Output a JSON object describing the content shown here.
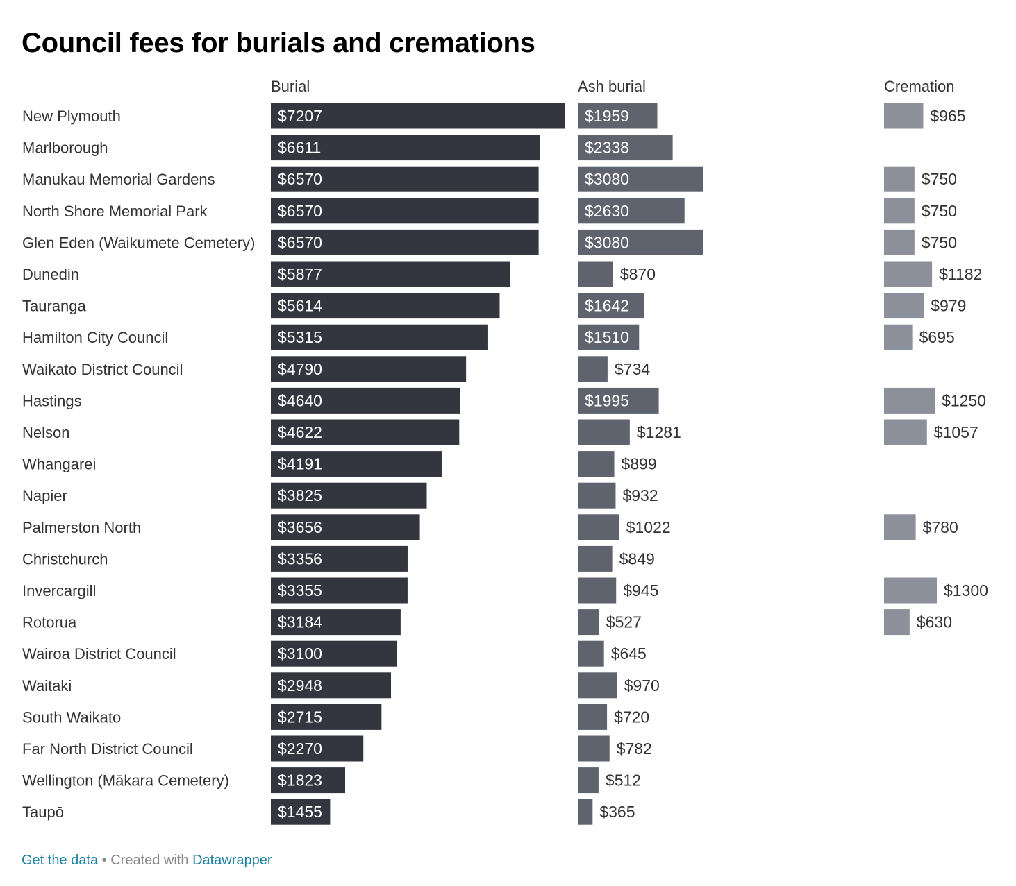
{
  "title": "Council fees for burials and cremations",
  "footer": {
    "get_data_label": "Get the data",
    "separator": "•",
    "created_with": "Created with",
    "tool_label": "Datawrapper"
  },
  "colors": {
    "burial": "#33363f",
    "ash_burial": "#5f636e",
    "cremation": "#8c909b",
    "link": "#1d81a2"
  },
  "chart_data": {
    "type": "bar",
    "orientation": "horizontal",
    "value_prefix": "$",
    "categories": [
      "New Plymouth",
      "Marlborough",
      "Manukau Memorial Gardens",
      "North Shore Memorial Park",
      "Glen Eden (Waikumete Cemetery)",
      "Dunedin",
      "Tauranga",
      "Hamilton City Council",
      "Waikato District Council",
      "Hastings",
      "Nelson",
      "Whangarei",
      "Napier",
      "Palmerston North",
      "Christchurch",
      "Invercargill",
      "Rotorua",
      "Wairoa District Council",
      "Waitaki",
      "South Waikato",
      "Far North District Council",
      "Wellington (Mākara Cemetery)",
      "Taupō"
    ],
    "series": [
      {
        "name": "Burial",
        "values": [
          7207,
          6611,
          6570,
          6570,
          6570,
          5877,
          5614,
          5315,
          4790,
          4640,
          4622,
          4191,
          3825,
          3656,
          3356,
          3355,
          3184,
          3100,
          2948,
          2715,
          2270,
          1823,
          1455
        ]
      },
      {
        "name": "Ash burial",
        "values": [
          1959,
          2338,
          3080,
          2630,
          3080,
          870,
          1642,
          1510,
          734,
          1995,
          1281,
          899,
          932,
          1022,
          849,
          945,
          527,
          645,
          970,
          720,
          782,
          512,
          365
        ]
      },
      {
        "name": "Cremation",
        "values": [
          965,
          null,
          750,
          750,
          750,
          1182,
          979,
          695,
          null,
          1250,
          1057,
          null,
          null,
          780,
          null,
          1300,
          630,
          null,
          null,
          null,
          null,
          null,
          null
        ]
      }
    ]
  }
}
